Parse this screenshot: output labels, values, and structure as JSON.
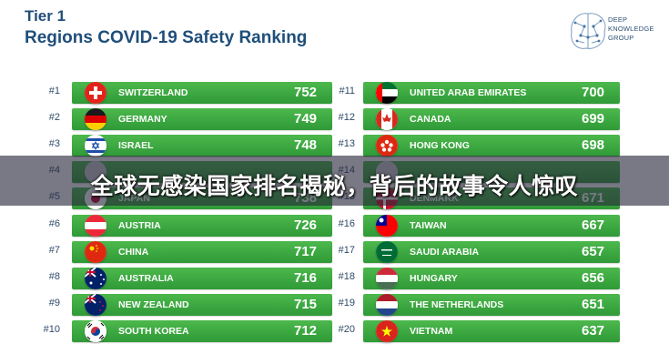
{
  "header": {
    "tier": "Tier 1",
    "title": "Regions COVID-19 Safety Ranking"
  },
  "logo": {
    "line1": "DEEP",
    "line2": "KNOWLEDGE",
    "line3": "GROUP"
  },
  "banner": {
    "text": "全球无感染国家排名揭秘，背后的故事令人惊叹"
  },
  "chart_data": {
    "type": "bar",
    "title": "Regions COVID-19 Safety Ranking",
    "subtitle": "Tier 1",
    "columns": [
      [
        {
          "rank": "#1",
          "name": "SWITZERLAND",
          "value": 752,
          "flag": "switzerland"
        },
        {
          "rank": "#2",
          "name": "GERMANY",
          "value": 749,
          "flag": "germany"
        },
        {
          "rank": "#3",
          "name": "ISRAEL",
          "value": 748,
          "flag": "israel"
        },
        {
          "rank": "#4",
          "name": "",
          "value": null,
          "flag": "hidden"
        },
        {
          "rank": "#5",
          "name": "JAPAN",
          "value": 738,
          "flag": "japan"
        },
        {
          "rank": "#6",
          "name": "AUSTRIA",
          "value": 726,
          "flag": "austria"
        },
        {
          "rank": "#7",
          "name": "CHINA",
          "value": 717,
          "flag": "china"
        },
        {
          "rank": "#8",
          "name": "AUSTRALIA",
          "value": 716,
          "flag": "australia"
        },
        {
          "rank": "#9",
          "name": "NEW ZEALAND",
          "value": 715,
          "flag": "new-zealand"
        },
        {
          "rank": "#10",
          "name": "SOUTH KOREA",
          "value": 712,
          "flag": "south-korea"
        }
      ],
      [
        {
          "rank": "#11",
          "name": "UNITED ARAB EMIRATES",
          "value": 700,
          "flag": "uae"
        },
        {
          "rank": "#12",
          "name": "CANADA",
          "value": 699,
          "flag": "canada"
        },
        {
          "rank": "#13",
          "name": "HONG KONG",
          "value": 698,
          "flag": "hong-kong"
        },
        {
          "rank": "#14",
          "name": "",
          "value": null,
          "flag": "hidden"
        },
        {
          "rank": "#15",
          "name": "DENMARK",
          "value": 671,
          "flag": "denmark"
        },
        {
          "rank": "#16",
          "name": "TAIWAN",
          "value": 667,
          "flag": "taiwan"
        },
        {
          "rank": "#17",
          "name": "SAUDI ARABIA",
          "value": 657,
          "flag": "saudi-arabia"
        },
        {
          "rank": "#18",
          "name": "HUNGARY",
          "value": 656,
          "flag": "hungary"
        },
        {
          "rank": "#19",
          "name": "THE NETHERLANDS",
          "value": 651,
          "flag": "netherlands"
        },
        {
          "rank": "#20",
          "name": "VIETNAM",
          "value": 637,
          "flag": "vietnam"
        }
      ]
    ],
    "bar_color": "#3aa842",
    "label_color": "#ffffff"
  }
}
